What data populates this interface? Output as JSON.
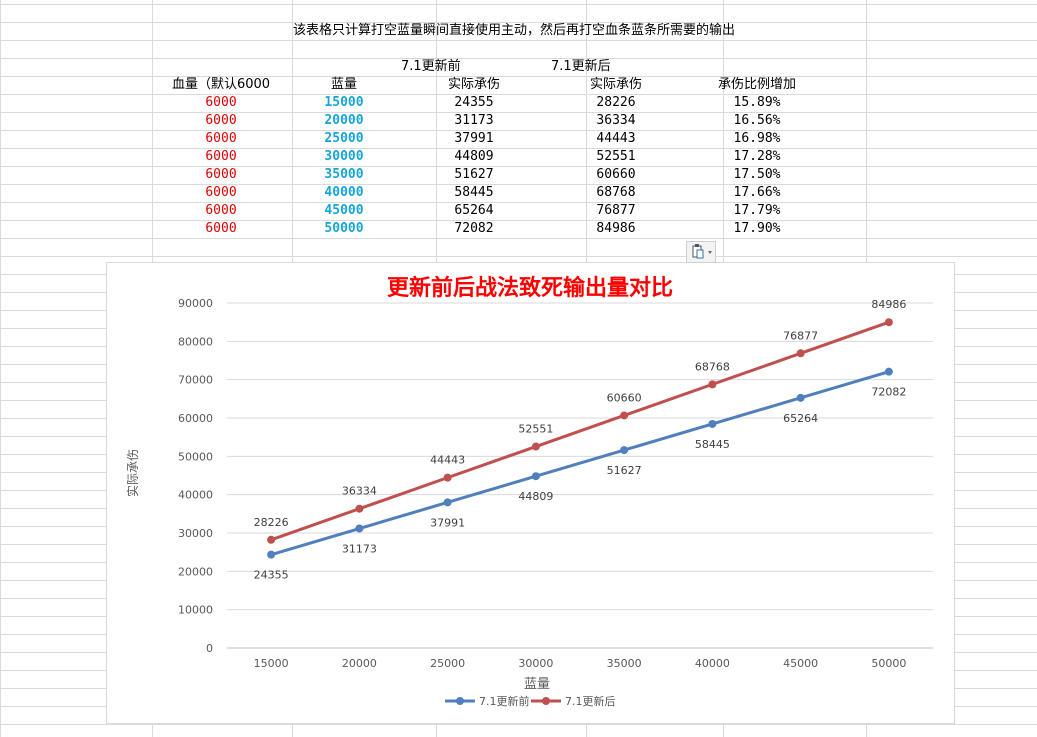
{
  "sheet": {
    "title": "该表格只计算打空蓝量瞬间直接使用主动，然后再打空血条蓝条所需要的输出",
    "group_before": "7.1更新前",
    "group_after": "7.1更新后",
    "headers": [
      "血量（默认6000",
      "蓝量",
      "实际承伤",
      "实际承伤",
      "承伤比例增加"
    ],
    "rows": [
      [
        "6000",
        "15000",
        "24355",
        "28226",
        "15.89%"
      ],
      [
        "6000",
        "20000",
        "31173",
        "36334",
        "16.56%"
      ],
      [
        "6000",
        "25000",
        "37991",
        "44443",
        "16.98%"
      ],
      [
        "6000",
        "30000",
        "44809",
        "52551",
        "17.28%"
      ],
      [
        "6000",
        "35000",
        "51627",
        "60660",
        "17.50%"
      ],
      [
        "6000",
        "40000",
        "58445",
        "68768",
        "17.66%"
      ],
      [
        "6000",
        "45000",
        "65264",
        "76877",
        "17.79%"
      ],
      [
        "6000",
        "50000",
        "72082",
        "84986",
        "17.90%"
      ]
    ]
  },
  "colors": {
    "hp_text": "#e00000",
    "mana_text": "#16a6d6",
    "series_before": "#4f7fbd",
    "series_after": "#c0504d",
    "title_red": "#ff0000"
  },
  "toolbar": {
    "paste_options_icon": "paste-options-icon"
  },
  "chart_data": {
    "type": "line",
    "title": "更新前后战法致死输出量对比",
    "xlabel": "蓝量",
    "ylabel": "实际承伤",
    "categories": [
      "15000",
      "20000",
      "25000",
      "30000",
      "35000",
      "40000",
      "45000",
      "50000"
    ],
    "ylim": [
      0,
      90000
    ],
    "yticks": [
      "0",
      "10000",
      "20000",
      "30000",
      "40000",
      "50000",
      "60000",
      "70000",
      "80000",
      "90000"
    ],
    "grid": "horizontal",
    "legend_position": "bottom",
    "series": [
      {
        "name": "7.1更新前",
        "values": [
          24355,
          31173,
          37991,
          44809,
          51627,
          58445,
          65264,
          72082
        ],
        "color": "#4f7fbd",
        "label_position": "below"
      },
      {
        "name": "7.1更新后",
        "values": [
          28226,
          36334,
          44443,
          52551,
          60660,
          68768,
          76877,
          84986
        ],
        "color": "#c0504d",
        "label_position": "above"
      }
    ]
  }
}
